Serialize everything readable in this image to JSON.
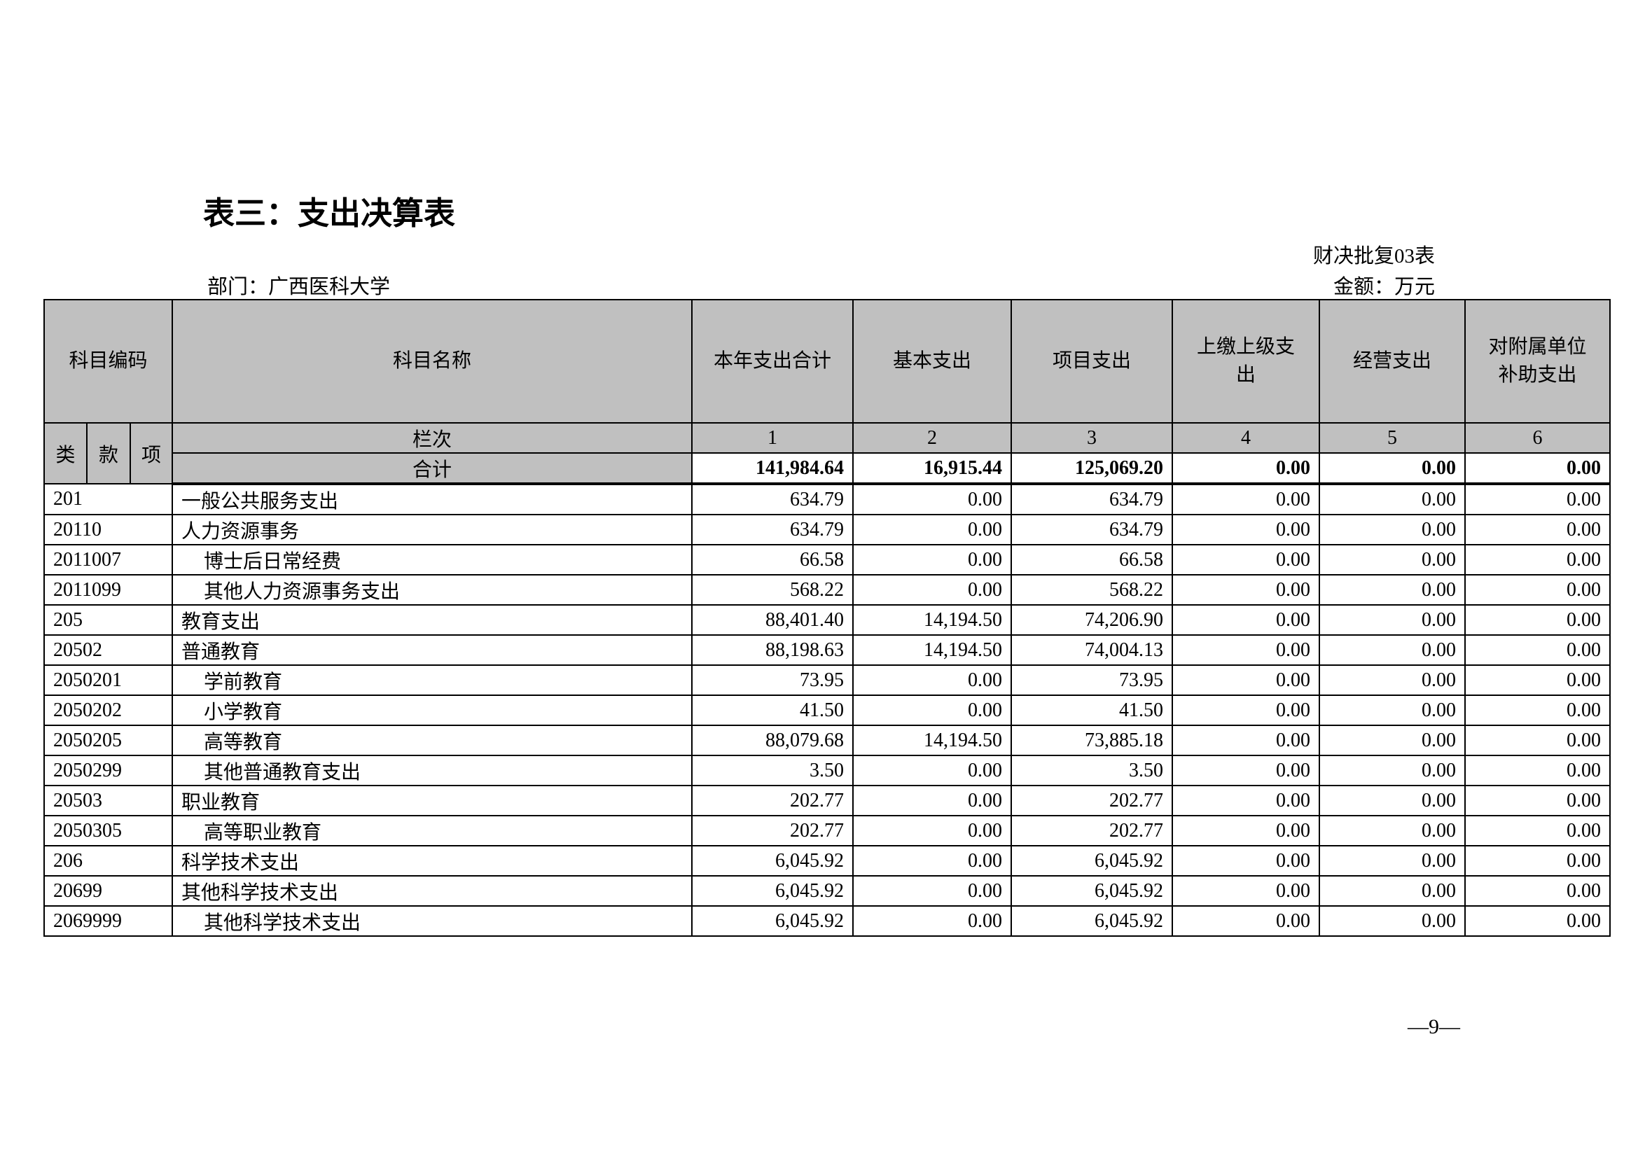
{
  "title": "表三：支出决算表",
  "form_no": "财决批复03表",
  "unit": "金额：万元",
  "department": "部门：广西医科大学",
  "page_number": "—9—",
  "header": {
    "code": "科目编码",
    "name": "科目名称",
    "columns": [
      "本年支出合计",
      "基本支出",
      "项目支出",
      "上缴上级支出",
      "经营支出",
      "对附属单位补助支出"
    ],
    "sub_codes": [
      "类",
      "款",
      "项"
    ],
    "column_no_label": "栏次",
    "column_nos": [
      "1",
      "2",
      "3",
      "4",
      "5",
      "6"
    ],
    "total_label": "合计",
    "totals": [
      "141,984.64",
      "16,915.44",
      "125,069.20",
      "0.00",
      "0.00",
      "0.00"
    ]
  },
  "rows": [
    {
      "code": "201",
      "name": "一般公共服务支出",
      "level": 1,
      "values": [
        "634.79",
        "0.00",
        "634.79",
        "0.00",
        "0.00",
        "0.00"
      ]
    },
    {
      "code": "20110",
      "name": "人力资源事务",
      "level": 2,
      "values": [
        "634.79",
        "0.00",
        "634.79",
        "0.00",
        "0.00",
        "0.00"
      ]
    },
    {
      "code": "2011007",
      "name": "博士后日常经费",
      "level": 3,
      "values": [
        "66.58",
        "0.00",
        "66.58",
        "0.00",
        "0.00",
        "0.00"
      ]
    },
    {
      "code": "2011099",
      "name": "其他人力资源事务支出",
      "level": 3,
      "values": [
        "568.22",
        "0.00",
        "568.22",
        "0.00",
        "0.00",
        "0.00"
      ]
    },
    {
      "code": "205",
      "name": "教育支出",
      "level": 1,
      "values": [
        "88,401.40",
        "14,194.50",
        "74,206.90",
        "0.00",
        "0.00",
        "0.00"
      ]
    },
    {
      "code": "20502",
      "name": "普通教育",
      "level": 2,
      "values": [
        "88,198.63",
        "14,194.50",
        "74,004.13",
        "0.00",
        "0.00",
        "0.00"
      ]
    },
    {
      "code": "2050201",
      "name": "学前教育",
      "level": 3,
      "values": [
        "73.95",
        "0.00",
        "73.95",
        "0.00",
        "0.00",
        "0.00"
      ]
    },
    {
      "code": "2050202",
      "name": "小学教育",
      "level": 3,
      "values": [
        "41.50",
        "0.00",
        "41.50",
        "0.00",
        "0.00",
        "0.00"
      ]
    },
    {
      "code": "2050205",
      "name": "高等教育",
      "level": 3,
      "values": [
        "88,079.68",
        "14,194.50",
        "73,885.18",
        "0.00",
        "0.00",
        "0.00"
      ]
    },
    {
      "code": "2050299",
      "name": "其他普通教育支出",
      "level": 3,
      "values": [
        "3.50",
        "0.00",
        "3.50",
        "0.00",
        "0.00",
        "0.00"
      ]
    },
    {
      "code": "20503",
      "name": "职业教育",
      "level": 2,
      "values": [
        "202.77",
        "0.00",
        "202.77",
        "0.00",
        "0.00",
        "0.00"
      ]
    },
    {
      "code": "2050305",
      "name": "高等职业教育",
      "level": 3,
      "values": [
        "202.77",
        "0.00",
        "202.77",
        "0.00",
        "0.00",
        "0.00"
      ]
    },
    {
      "code": "206",
      "name": "科学技术支出",
      "level": 1,
      "values": [
        "6,045.92",
        "0.00",
        "6,045.92",
        "0.00",
        "0.00",
        "0.00"
      ]
    },
    {
      "code": "20699",
      "name": "其他科学技术支出",
      "level": 2,
      "values": [
        "6,045.92",
        "0.00",
        "6,045.92",
        "0.00",
        "0.00",
        "0.00"
      ]
    },
    {
      "code": "2069999",
      "name": "其他科学技术支出",
      "level": 3,
      "values": [
        "6,045.92",
        "0.00",
        "6,045.92",
        "0.00",
        "0.00",
        "0.00"
      ]
    }
  ]
}
